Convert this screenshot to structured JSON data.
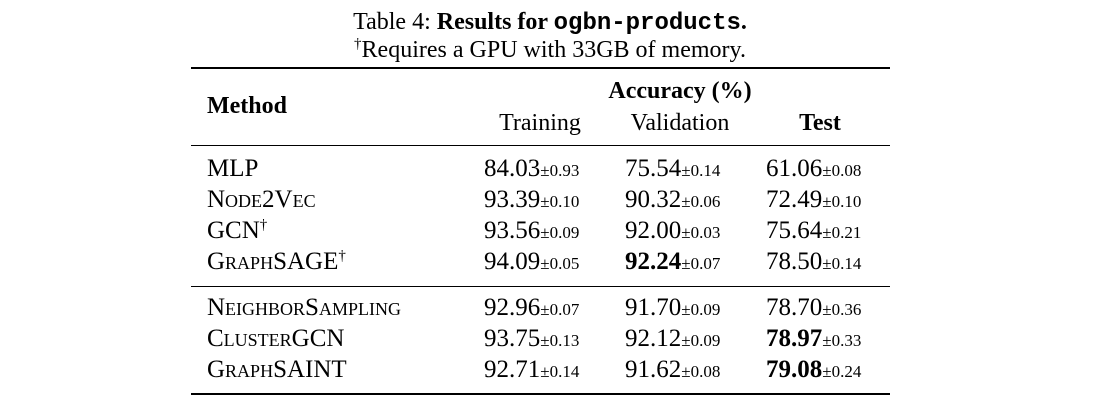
{
  "caption": {
    "prefix": "Table 4: ",
    "title_bold": "Results for ",
    "dataset": "ogbn-products",
    "title_end": ".",
    "note_dagger": "†",
    "note": "Requires a GPU with 33GB of memory."
  },
  "table": {
    "header": {
      "method": "Method",
      "group": "Accuracy (%)",
      "training": "Training",
      "validation": "Validation",
      "test": "Test"
    },
    "rows": [
      {
        "method": "MLP",
        "dagger": "",
        "training": {
          "v": "84.03",
          "pm": "±0.93"
        },
        "validation": {
          "v": "75.54",
          "pm": "±0.14"
        },
        "test": {
          "v": "61.06",
          "pm": "±0.08"
        }
      },
      {
        "method": "Node2Vec",
        "dagger": "",
        "training": {
          "v": "93.39",
          "pm": "±0.10"
        },
        "validation": {
          "v": "90.32",
          "pm": "±0.06"
        },
        "test": {
          "v": "72.49",
          "pm": "±0.10"
        }
      },
      {
        "method": "GCN",
        "dagger": "†",
        "training": {
          "v": "93.56",
          "pm": "±0.09"
        },
        "validation": {
          "v": "92.00",
          "pm": "±0.03"
        },
        "test": {
          "v": "75.64",
          "pm": "±0.21"
        }
      },
      {
        "method": "GraphSAGE",
        "dagger": "†",
        "training": {
          "v": "94.09",
          "pm": "±0.05"
        },
        "validation": {
          "v": "92.24",
          "pm": "±0.07",
          "bold": true
        },
        "test": {
          "v": "78.50",
          "pm": "±0.14"
        }
      },
      {
        "method": "NeighborSampling",
        "dagger": "",
        "training": {
          "v": "92.96",
          "pm": "±0.07"
        },
        "validation": {
          "v": "91.70",
          "pm": "±0.09"
        },
        "test": {
          "v": "78.70",
          "pm": "±0.36"
        }
      },
      {
        "method": "ClusterGCN",
        "dagger": "",
        "training": {
          "v": "93.75",
          "pm": "±0.13"
        },
        "validation": {
          "v": "92.12",
          "pm": "±0.09"
        },
        "test": {
          "v": "78.97",
          "pm": "±0.33",
          "bold": true
        }
      },
      {
        "method": "GraphSAINT",
        "dagger": "",
        "training": {
          "v": "92.71",
          "pm": "±0.14"
        },
        "validation": {
          "v": "91.62",
          "pm": "±0.08"
        },
        "test": {
          "v": "79.08",
          "pm": "±0.24",
          "bold": true
        }
      }
    ]
  }
}
